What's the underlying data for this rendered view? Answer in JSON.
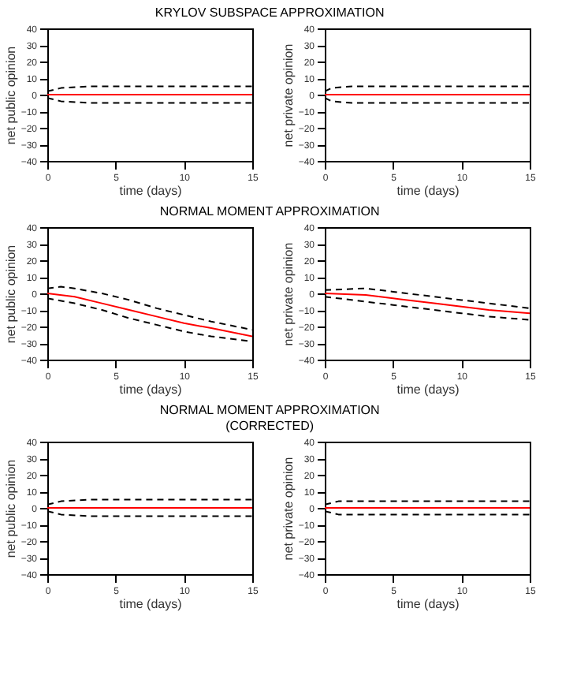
{
  "chart_data": [
    {
      "type": "line",
      "title": "KRYLOV SUBSPACE APPROXIMATION",
      "xlabel": "time (days)",
      "ylabel": "net public opinion",
      "xlim": [
        0,
        15
      ],
      "ylim": [
        -40,
        40
      ],
      "xticks": [
        0,
        5,
        10,
        15
      ],
      "yticks": [
        -40,
        -30,
        -20,
        -10,
        0,
        10,
        20,
        30,
        40
      ],
      "grid": false,
      "series": [
        {
          "color": "#000000",
          "line_style": "dashed",
          "x": [
            0,
            1,
            3,
            15
          ],
          "values": [
            2,
            4,
            5,
            5
          ]
        },
        {
          "color": "#000000",
          "line_style": "dashed",
          "x": [
            0,
            1,
            3,
            15
          ],
          "values": [
            -2,
            -4,
            -5,
            -5
          ]
        },
        {
          "color": "#ff0000",
          "line_style": "solid",
          "x": [
            0,
            15
          ],
          "values": [
            0,
            0
          ]
        }
      ]
    },
    {
      "type": "line",
      "xlabel": "time (days)",
      "ylabel": "net private opinion",
      "xlim": [
        0,
        15
      ],
      "ylim": [
        -40,
        40
      ],
      "xticks": [
        0,
        5,
        10,
        15
      ],
      "yticks": [
        -40,
        -30,
        -20,
        -10,
        0,
        10,
        20,
        30,
        40
      ],
      "grid": false,
      "series": [
        {
          "color": "#000000",
          "line_style": "dashed",
          "x": [
            0,
            0.5,
            2,
            15
          ],
          "values": [
            2,
            4,
            5,
            5
          ]
        },
        {
          "color": "#000000",
          "line_style": "dashed",
          "x": [
            0,
            0.5,
            2,
            15
          ],
          "values": [
            -2,
            -4,
            -5,
            -5
          ]
        },
        {
          "color": "#ff0000",
          "line_style": "solid",
          "x": [
            0,
            15
          ],
          "values": [
            0,
            0
          ]
        }
      ]
    },
    {
      "type": "line",
      "title": "NORMAL MOMENT APPROXIMATION",
      "xlabel": "time (days)",
      "ylabel": "net public opinion",
      "xlim": [
        0,
        15
      ],
      "ylim": [
        -40,
        40
      ],
      "xticks": [
        0,
        5,
        10,
        15
      ],
      "yticks": [
        -40,
        -30,
        -20,
        -10,
        0,
        10,
        20,
        30,
        40
      ],
      "grid": false,
      "series": [
        {
          "color": "#000000",
          "line_style": "dashed",
          "x": [
            0,
            1,
            2,
            4,
            6,
            8,
            10,
            12,
            15
          ],
          "values": [
            3,
            4,
            3,
            0,
            -4,
            -9,
            -13,
            -17,
            -22
          ]
        },
        {
          "color": "#000000",
          "line_style": "dashed",
          "x": [
            0,
            2,
            4,
            6,
            8,
            10,
            12,
            15
          ],
          "values": [
            -3,
            -6,
            -10,
            -15,
            -19,
            -23,
            -26,
            -29
          ]
        },
        {
          "color": "#ff0000",
          "line_style": "solid",
          "x": [
            0,
            2,
            4,
            6,
            8,
            10,
            12,
            15
          ],
          "values": [
            0,
            -2,
            -6,
            -10,
            -14,
            -18,
            -21,
            -26
          ]
        }
      ]
    },
    {
      "type": "line",
      "xlabel": "time (days)",
      "ylabel": "net private opinion",
      "xlim": [
        0,
        15
      ],
      "ylim": [
        -40,
        40
      ],
      "xticks": [
        0,
        5,
        10,
        15
      ],
      "yticks": [
        -40,
        -30,
        -20,
        -10,
        0,
        10,
        20,
        30,
        40
      ],
      "grid": false,
      "series": [
        {
          "color": "#000000",
          "line_style": "dashed",
          "x": [
            0,
            3,
            5,
            8,
            10,
            12,
            15
          ],
          "values": [
            2,
            3,
            1,
            -2,
            -4,
            -6,
            -9
          ]
        },
        {
          "color": "#000000",
          "line_style": "dashed",
          "x": [
            0,
            3,
            5,
            8,
            10,
            12,
            15
          ],
          "values": [
            -2,
            -5,
            -7,
            -10,
            -12,
            -14,
            -16
          ]
        },
        {
          "color": "#ff0000",
          "line_style": "solid",
          "x": [
            0,
            3,
            5,
            8,
            10,
            12,
            15
          ],
          "values": [
            0,
            -1,
            -3,
            -6,
            -8,
            -10,
            -12
          ]
        }
      ]
    },
    {
      "type": "line",
      "title": "NORMAL MOMENT APPROXIMATION\n(CORRECTED)",
      "xlabel": "time (days)",
      "ylabel": "net public opinion",
      "xlim": [
        0,
        15
      ],
      "ylim": [
        -40,
        40
      ],
      "xticks": [
        0,
        5,
        10,
        15
      ],
      "yticks": [
        -40,
        -30,
        -20,
        -10,
        0,
        10,
        20,
        30,
        40
      ],
      "grid": false,
      "series": [
        {
          "color": "#000000",
          "line_style": "dashed",
          "x": [
            0,
            1,
            3,
            15
          ],
          "values": [
            2,
            4,
            5,
            5
          ]
        },
        {
          "color": "#000000",
          "line_style": "dashed",
          "x": [
            0,
            1,
            3,
            15
          ],
          "values": [
            -2,
            -4,
            -5,
            -5
          ]
        },
        {
          "color": "#ff0000",
          "line_style": "solid",
          "x": [
            0,
            15
          ],
          "values": [
            0,
            0
          ]
        }
      ]
    },
    {
      "type": "line",
      "xlabel": "time (days)",
      "ylabel": "net private opinion",
      "xlim": [
        0,
        15
      ],
      "ylim": [
        -40,
        40
      ],
      "xticks": [
        0,
        5,
        10,
        15
      ],
      "yticks": [
        -40,
        -30,
        -20,
        -10,
        0,
        10,
        20,
        30,
        40
      ],
      "grid": false,
      "series": [
        {
          "color": "#000000",
          "line_style": "dashed",
          "x": [
            0,
            0.5,
            1,
            15
          ],
          "values": [
            2,
            3,
            4,
            4
          ]
        },
        {
          "color": "#000000",
          "line_style": "dashed",
          "x": [
            0,
            0.5,
            1,
            15
          ],
          "values": [
            -2,
            -3,
            -4,
            -4
          ]
        },
        {
          "color": "#ff0000",
          "line_style": "solid",
          "x": [
            0,
            15
          ],
          "values": [
            0,
            0
          ]
        }
      ]
    }
  ]
}
